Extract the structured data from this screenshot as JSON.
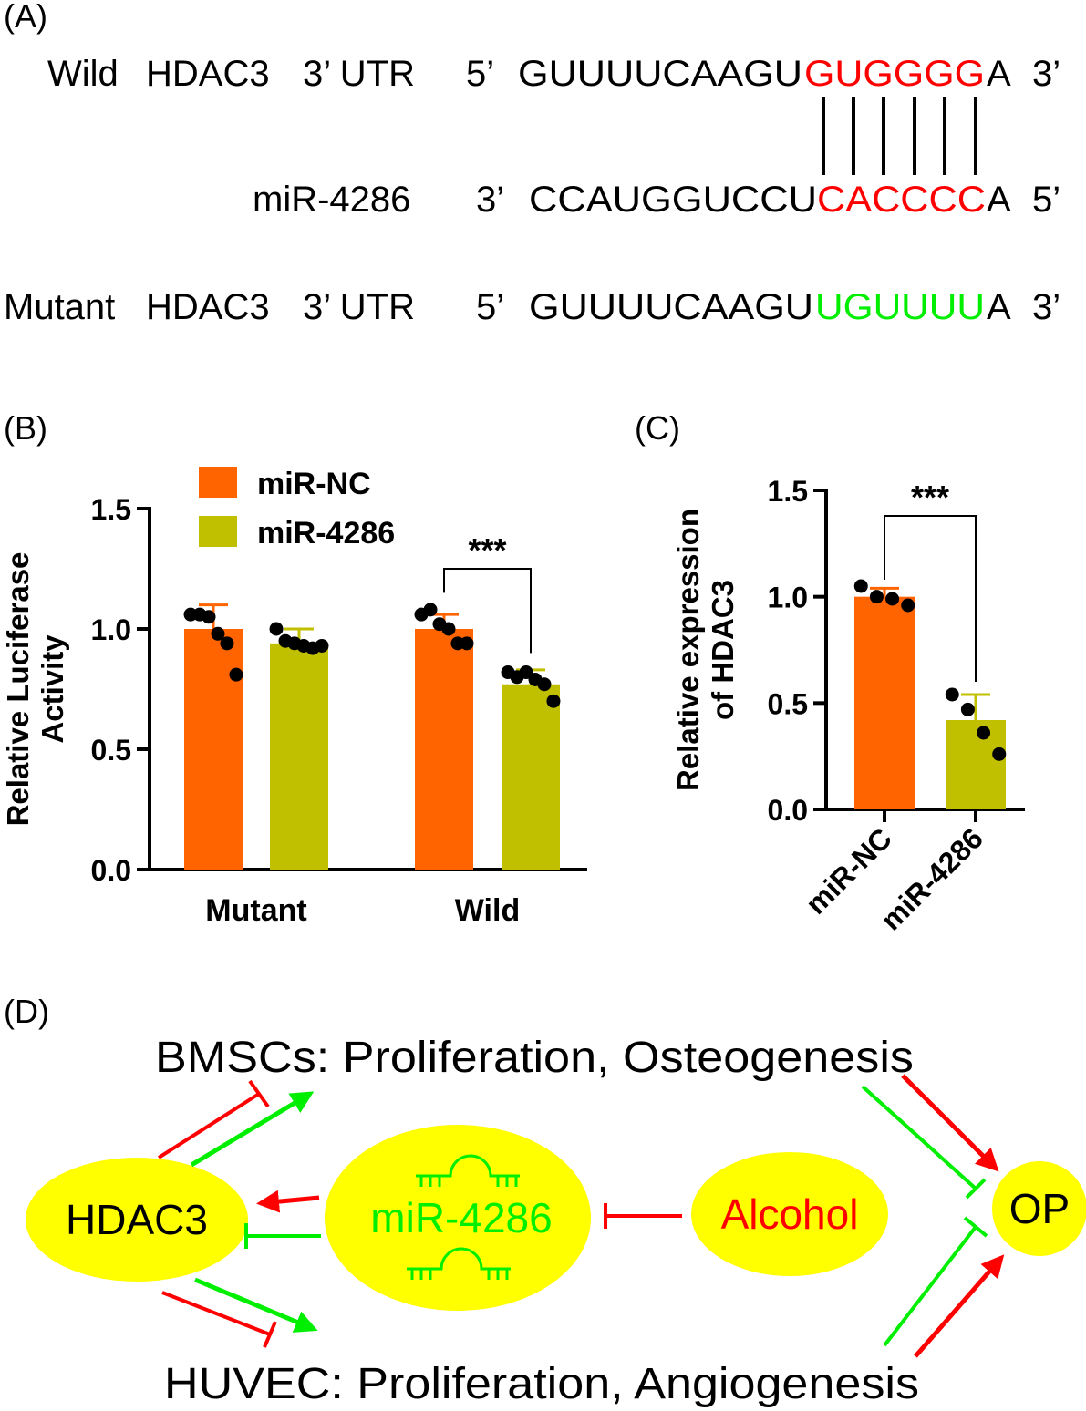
{
  "colors": {
    "orange": "#ff6400",
    "olive": "#c0c000",
    "red": "#ff0000",
    "green": "#00ee00",
    "yellow": "#ffff00",
    "black": "#000000"
  },
  "panelA": {
    "label": "(A)",
    "wild": {
      "name": "Wild",
      "gene": "HDAC3",
      "region": "3’ UTR",
      "end5": "5’",
      "seq_prefix": "GUUUUCAAGU",
      "seq_site": "GUGGGG",
      "seq_suffix": "A",
      "end3": "3’"
    },
    "mirna": {
      "name": "miR-4286",
      "end3": "3’",
      "seq_prefix": "CCAUGGUCCU",
      "seq_site": "CACCCC",
      "seq_suffix": "A",
      "end5": "5’"
    },
    "mutant": {
      "name": "Mutant",
      "gene": "HDAC3",
      "region": "3’ UTR",
      "end5": "5’",
      "seq_prefix": "GUUUUCAAGU",
      "seq_site": "UGUUUU",
      "seq_suffix": "A",
      "end3": "3’"
    }
  },
  "chart_data": [
    {
      "panel": "(B)",
      "type": "bar",
      "ylabel": "Relative Luciferase\nActivity",
      "xlabel": "",
      "ylim": [
        0,
        1.5
      ],
      "yticks": [
        "0.0",
        "0.5",
        "1.0",
        "1.5"
      ],
      "categories": [
        "Mutant",
        "Wild"
      ],
      "legend_position": "top-left",
      "series": [
        {
          "name": "miR-NC",
          "color": "orange",
          "values": [
            1.0,
            1.0
          ],
          "error": [
            0.1,
            0.06
          ],
          "points": [
            [
              1.06,
              1.06,
              1.05,
              0.98,
              0.94,
              0.81
            ],
            [
              1.06,
              1.08,
              1.02,
              1.0,
              0.94,
              0.94
            ]
          ]
        },
        {
          "name": "miR-4286",
          "color": "olive",
          "values": [
            0.94,
            0.77
          ],
          "error": [
            0.06,
            0.06
          ],
          "points": [
            [
              1.0,
              0.95,
              0.94,
              0.93,
              0.92,
              0.93
            ],
            [
              0.82,
              0.8,
              0.82,
              0.79,
              0.77,
              0.7
            ]
          ]
        }
      ],
      "annotations": [
        {
          "text": "***",
          "between": [
            "Wild:miR-NC",
            "Wild:miR-4286"
          ]
        }
      ]
    },
    {
      "panel": "(C)",
      "type": "bar",
      "ylabel": "Relative expression\nof HDAC3",
      "xlabel": "",
      "ylim": [
        0,
        1.5
      ],
      "yticks": [
        "0.0",
        "0.5",
        "1.0",
        "1.5"
      ],
      "categories": [
        "miR-NC",
        "miR-4286"
      ],
      "colors": [
        "orange",
        "olive"
      ],
      "values": [
        1.0,
        0.42
      ],
      "error": [
        0.04,
        0.12
      ],
      "points": [
        [
          1.05,
          1.0,
          0.99,
          0.96
        ],
        [
          0.54,
          0.47,
          0.36,
          0.26
        ]
      ],
      "annotations": [
        {
          "text": "***",
          "between": [
            "miR-NC",
            "miR-4286"
          ]
        }
      ]
    }
  ],
  "panelD": {
    "label": "(D)",
    "top_text": "BMSCs: Proliferation, Osteogenesis",
    "bottom_text": "HUVEC: Proliferation, Angiogenesis",
    "nodes": {
      "hdac3": "HDAC3",
      "mir": "miR-4286",
      "alcohol": "Alcohol",
      "op": "OP"
    }
  }
}
